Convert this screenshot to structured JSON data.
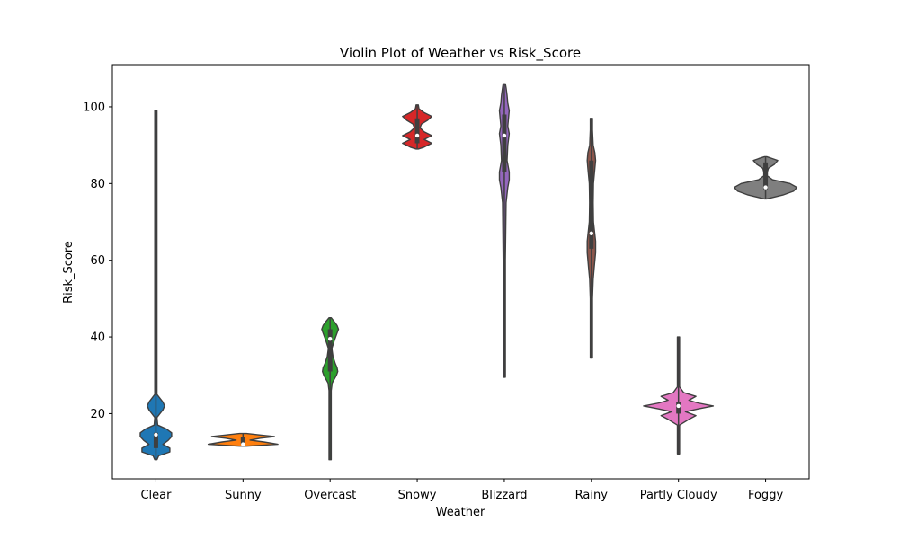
{
  "chart_data": {
    "type": "violin",
    "title": "Violin Plot of Weather vs Risk_Score",
    "xlabel": "Weather",
    "ylabel": "Risk_Score",
    "ylim": [
      3,
      111
    ],
    "yticks": [
      20,
      40,
      60,
      80,
      100
    ],
    "grid": false,
    "legend": "none",
    "categories": [
      "Clear",
      "Sunny",
      "Overcast",
      "Snowy",
      "Blizzard",
      "Rainy",
      "Partly Cloudy",
      "Foggy"
    ],
    "violins": [
      {
        "category": "Clear",
        "color": "#1f77b4",
        "min": 8,
        "max": 99,
        "median": 14.5,
        "q1": 11,
        "q3": 15,
        "density": [
          [
            8,
            0.0
          ],
          [
            9,
            0.08
          ],
          [
            10,
            0.4
          ],
          [
            11,
            0.4
          ],
          [
            12,
            0.2
          ],
          [
            13,
            0.35
          ],
          [
            14,
            0.45
          ],
          [
            15,
            0.45
          ],
          [
            16,
            0.3
          ],
          [
            17,
            0.05
          ],
          [
            19,
            0.02
          ],
          [
            21,
            0.2
          ],
          [
            22,
            0.25
          ],
          [
            23,
            0.2
          ],
          [
            25,
            0.01
          ],
          [
            99,
            0.0
          ]
        ]
      },
      {
        "category": "Sunny",
        "color": "#ff7f0e",
        "min": 11.5,
        "max": 14.8,
        "median": 12,
        "q1": 12,
        "q3": 14,
        "density": [
          [
            11.5,
            0.1
          ],
          [
            12,
            1.0
          ],
          [
            12.6,
            0.6
          ],
          [
            13.1,
            0.2
          ],
          [
            13.6,
            0.5
          ],
          [
            14,
            0.9
          ],
          [
            14.4,
            0.5
          ],
          [
            14.8,
            0.1
          ]
        ]
      },
      {
        "category": "Overcast",
        "color": "#2ca02c",
        "min": 8,
        "max": 45,
        "median": 39.5,
        "q1": 31,
        "q3": 42,
        "density": [
          [
            8,
            0.0
          ],
          [
            26,
            0.03
          ],
          [
            28,
            0.06
          ],
          [
            30,
            0.18
          ],
          [
            31,
            0.22
          ],
          [
            32,
            0.2
          ],
          [
            33,
            0.15
          ],
          [
            35,
            0.08
          ],
          [
            37,
            0.05
          ],
          [
            39,
            0.12
          ],
          [
            41,
            0.2
          ],
          [
            42,
            0.24
          ],
          [
            43,
            0.2
          ],
          [
            44,
            0.12
          ],
          [
            45,
            0.0
          ]
        ]
      },
      {
        "category": "Snowy",
        "color": "#d62728",
        "min": 89,
        "max": 100.5,
        "median": 92.5,
        "q1": 90.5,
        "q3": 97,
        "density": [
          [
            89,
            0.0
          ],
          [
            89.5,
            0.2
          ],
          [
            90.5,
            0.42
          ],
          [
            91.5,
            0.2
          ],
          [
            92.5,
            0.42
          ],
          [
            93.5,
            0.2
          ],
          [
            94.5,
            0.08
          ],
          [
            95.5,
            0.12
          ],
          [
            96.5,
            0.3
          ],
          [
            97.5,
            0.42
          ],
          [
            98.5,
            0.2
          ],
          [
            99.5,
            0.05
          ],
          [
            100.5,
            0.0
          ]
        ]
      },
      {
        "category": "Blizzard",
        "color": "#9467bd",
        "min": 29.5,
        "max": 106,
        "median": 92.5,
        "q1": 83,
        "q3": 98,
        "density": [
          [
            29.5,
            0.0
          ],
          [
            40,
            0.02
          ],
          [
            60,
            0.03
          ],
          [
            75,
            0.05
          ],
          [
            79,
            0.1
          ],
          [
            81,
            0.14
          ],
          [
            83,
            0.14
          ],
          [
            86,
            0.08
          ],
          [
            90,
            0.1
          ],
          [
            93,
            0.14
          ],
          [
            95,
            0.1
          ],
          [
            97,
            0.12
          ],
          [
            99,
            0.14
          ],
          [
            101,
            0.1
          ],
          [
            103,
            0.08
          ],
          [
            105,
            0.05
          ],
          [
            106,
            0.0
          ]
        ]
      },
      {
        "category": "Rainy",
        "color": "#8c564b",
        "min": 34.5,
        "max": 97,
        "median": 67,
        "q1": 63,
        "q3": 86,
        "density": [
          [
            34.5,
            0.0
          ],
          [
            50,
            0.03
          ],
          [
            55,
            0.05
          ],
          [
            58,
            0.08
          ],
          [
            62,
            0.12
          ],
          [
            65,
            0.12
          ],
          [
            70,
            0.06
          ],
          [
            75,
            0.05
          ],
          [
            80,
            0.06
          ],
          [
            84,
            0.1
          ],
          [
            86,
            0.12
          ],
          [
            88,
            0.1
          ],
          [
            90,
            0.05
          ],
          [
            94,
            0.02
          ],
          [
            97,
            0.0
          ]
        ]
      },
      {
        "category": "Partly Cloudy",
        "color": "#e377c2",
        "min": 9.5,
        "max": 40,
        "median": 22,
        "q1": 20,
        "q3": 23,
        "density": [
          [
            9.5,
            0.0
          ],
          [
            17,
            0.02
          ],
          [
            18.5,
            0.3
          ],
          [
            19.5,
            0.5
          ],
          [
            20.5,
            0.2
          ],
          [
            21.2,
            0.55
          ],
          [
            22,
            1.0
          ],
          [
            22.8,
            0.55
          ],
          [
            23.5,
            0.3
          ],
          [
            24.5,
            0.5
          ],
          [
            25.5,
            0.15
          ],
          [
            27,
            0.02
          ],
          [
            40,
            0.0
          ]
        ]
      },
      {
        "category": "Foggy",
        "color": "#7f7f7f",
        "min": 76,
        "max": 87,
        "median": 79,
        "q1": 78.5,
        "q3": 85.5,
        "density": [
          [
            76,
            0.0
          ],
          [
            77,
            0.5
          ],
          [
            78,
            0.8
          ],
          [
            79,
            0.9
          ],
          [
            80,
            0.7
          ],
          [
            81,
            0.2
          ],
          [
            82,
            0.05
          ],
          [
            83,
            0.05
          ],
          [
            84,
            0.08
          ],
          [
            85,
            0.25
          ],
          [
            86,
            0.35
          ],
          [
            86.5,
            0.2
          ],
          [
            87,
            0.0
          ]
        ]
      }
    ]
  }
}
